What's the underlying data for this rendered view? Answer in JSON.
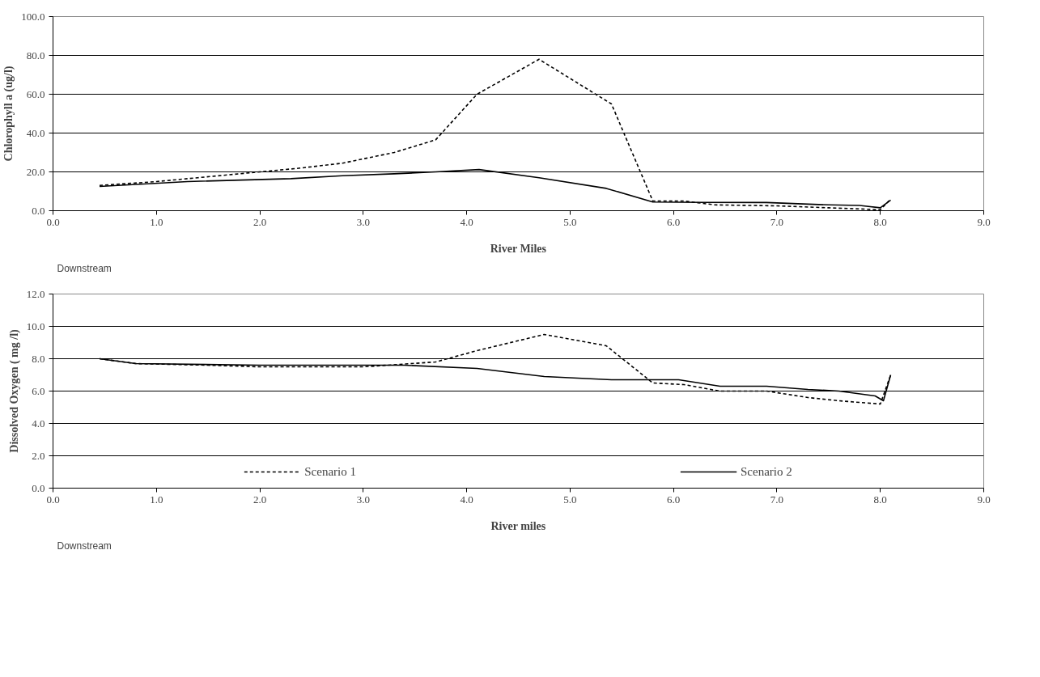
{
  "chart_data": [
    {
      "type": "line",
      "xlabel": "River Miles",
      "ylabel": "Chlorophyll a (ug/l)",
      "annotations": [
        "Downstream"
      ],
      "xlim": [
        0,
        9
      ],
      "xticks": [
        {
          "value": 0,
          "label": "0.0"
        },
        {
          "value": 1,
          "label": "1.0"
        },
        {
          "value": 2,
          "label": "2.0"
        },
        {
          "value": 3,
          "label": "3.0"
        },
        {
          "value": 4,
          "label": "4.0"
        },
        {
          "value": 5,
          "label": "5.0"
        },
        {
          "value": 6,
          "label": "6.0"
        },
        {
          "value": 7,
          "label": "7.0"
        },
        {
          "value": 8,
          "label": "8.0"
        },
        {
          "value": 9,
          "label": "9.0"
        }
      ],
      "ylim": [
        0,
        100
      ],
      "yticks": [
        {
          "value": 0,
          "label": "0.0"
        },
        {
          "value": 20,
          "label": "20.0"
        },
        {
          "value": 40,
          "label": "40.0"
        },
        {
          "value": 60,
          "label": "60.0"
        },
        {
          "value": 80,
          "label": "80.0"
        },
        {
          "value": 100,
          "label": "100.0"
        }
      ],
      "grid": "y",
      "series": [
        {
          "color": "#000000",
          "line_style": "dashed",
          "x": [
            0.45,
            1.0,
            1.4,
            1.9,
            2.4,
            2.8,
            3.3,
            3.7,
            4.1,
            4.7,
            5.4,
            5.8,
            6.1,
            6.4,
            7.0,
            7.5,
            8.0,
            8.1
          ],
          "values": [
            13,
            15,
            17,
            19.5,
            22,
            24.5,
            30,
            36.5,
            60,
            78,
            55,
            5,
            5,
            3,
            2.5,
            1.5,
            0.5,
            6
          ]
        },
        {
          "color": "#000000",
          "line_style": "solid",
          "x": [
            0.45,
            1.3,
            2.3,
            2.8,
            3.3,
            3.7,
            4.12,
            4.7,
            5.35,
            5.8,
            6.3,
            6.9,
            7.5,
            7.8,
            8.0,
            8.1
          ],
          "values": [
            12.5,
            15,
            16.5,
            18,
            19,
            20,
            21.2,
            17,
            11.5,
            4.5,
            4.3,
            4.2,
            3,
            2.7,
            1.5,
            5.5
          ]
        }
      ]
    },
    {
      "type": "line",
      "xlabel": "River miles",
      "ylabel": "Dissolved Oxygen ( mg /l)",
      "annotations": [
        "Downstream"
      ],
      "xlim": [
        0,
        9
      ],
      "xticks": [
        {
          "value": 0,
          "label": "0.0"
        },
        {
          "value": 1,
          "label": "1.0"
        },
        {
          "value": 2,
          "label": "2.0"
        },
        {
          "value": 3,
          "label": "3.0"
        },
        {
          "value": 4,
          "label": "4.0"
        },
        {
          "value": 5,
          "label": "5.0"
        },
        {
          "value": 6,
          "label": "6.0"
        },
        {
          "value": 7,
          "label": "7.0"
        },
        {
          "value": 8,
          "label": "8.0"
        },
        {
          "value": 9,
          "label": "9.0"
        }
      ],
      "ylim": [
        0,
        12
      ],
      "yticks": [
        {
          "value": 0,
          "label": "0.0"
        },
        {
          "value": 2,
          "label": "2.0"
        },
        {
          "value": 4,
          "label": "4.0"
        },
        {
          "value": 6,
          "label": "6.0"
        },
        {
          "value": 8,
          "label": "8.0"
        },
        {
          "value": 10,
          "label": "10.0"
        },
        {
          "value": 12,
          "label": "12.0"
        }
      ],
      "grid": "y",
      "legend": "bottom",
      "series": [
        {
          "name": "Scenario 1",
          "color": "#000000",
          "line_style": "dashed",
          "x": [
            0.45,
            0.8,
            1.5,
            2.0,
            3.0,
            3.7,
            4.1,
            4.75,
            5.35,
            5.8,
            6.1,
            6.45,
            6.9,
            7.3,
            7.6,
            8.0,
            8.1
          ],
          "values": [
            8.0,
            7.7,
            7.6,
            7.5,
            7.5,
            7.8,
            8.5,
            9.5,
            8.8,
            6.5,
            6.4,
            6.0,
            6.0,
            5.6,
            5.4,
            5.2,
            7.0
          ]
        },
        {
          "name": "Scenario 2",
          "color": "#000000",
          "line_style": "solid",
          "x": [
            0.45,
            0.8,
            2.0,
            3.4,
            4.1,
            4.75,
            5.4,
            6.05,
            6.45,
            6.9,
            7.3,
            7.6,
            7.95,
            8.03,
            8.1
          ],
          "values": [
            8.0,
            7.7,
            7.6,
            7.6,
            7.4,
            6.9,
            6.7,
            6.7,
            6.3,
            6.3,
            6.1,
            6.0,
            5.7,
            5.4,
            7.0
          ]
        }
      ]
    }
  ]
}
